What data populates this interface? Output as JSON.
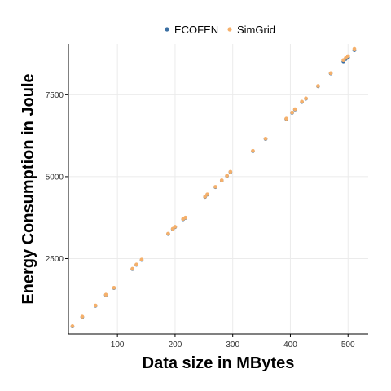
{
  "chart_data": {
    "type": "scatter",
    "xlabel": "Data size in MBytes",
    "ylabel": "Energy Consumption in Joule",
    "xlim": [
      15,
      535
    ],
    "ylim": [
      200,
      9050
    ],
    "xticks": [
      100,
      200,
      300,
      400,
      500
    ],
    "yticks": [
      2500,
      5000,
      7500
    ],
    "grid": true,
    "legend_position": "top",
    "series": [
      {
        "name": "ECOFEN",
        "color": "#3b6fa3",
        "points": [
          [
            22,
            430
          ],
          [
            39,
            720
          ],
          [
            62,
            1060
          ],
          [
            80,
            1390
          ],
          [
            94,
            1600
          ],
          [
            126,
            2180
          ],
          [
            133,
            2310
          ],
          [
            142,
            2460
          ],
          [
            188,
            3250
          ],
          [
            196,
            3400
          ],
          [
            200,
            3460
          ],
          [
            214,
            3700
          ],
          [
            218,
            3740
          ],
          [
            252,
            4380
          ],
          [
            256,
            4450
          ],
          [
            270,
            4680
          ],
          [
            281,
            4880
          ],
          [
            290,
            5020
          ],
          [
            296,
            5140
          ],
          [
            335,
            5780
          ],
          [
            357,
            6150
          ],
          [
            393,
            6760
          ],
          [
            403,
            6950
          ],
          [
            408,
            7050
          ],
          [
            420,
            7280
          ],
          [
            427,
            7380
          ],
          [
            448,
            7760
          ],
          [
            470,
            8150
          ],
          [
            492,
            8520
          ],
          [
            496,
            8590
          ],
          [
            500,
            8640
          ],
          [
            511,
            8860
          ]
        ]
      },
      {
        "name": "SimGrid",
        "color": "#f5b06b",
        "points": [
          [
            22,
            440
          ],
          [
            39,
            730
          ],
          [
            62,
            1070
          ],
          [
            80,
            1400
          ],
          [
            94,
            1610
          ],
          [
            126,
            2190
          ],
          [
            133,
            2320
          ],
          [
            142,
            2470
          ],
          [
            188,
            3260
          ],
          [
            196,
            3410
          ],
          [
            200,
            3470
          ],
          [
            214,
            3710
          ],
          [
            218,
            3750
          ],
          [
            252,
            4390
          ],
          [
            256,
            4460
          ],
          [
            270,
            4690
          ],
          [
            281,
            4890
          ],
          [
            290,
            5030
          ],
          [
            296,
            5150
          ],
          [
            335,
            5790
          ],
          [
            357,
            6160
          ],
          [
            393,
            6770
          ],
          [
            403,
            6960
          ],
          [
            408,
            7060
          ],
          [
            420,
            7290
          ],
          [
            427,
            7390
          ],
          [
            448,
            7770
          ],
          [
            470,
            8160
          ],
          [
            492,
            8560
          ],
          [
            496,
            8620
          ],
          [
            500,
            8680
          ],
          [
            511,
            8900
          ]
        ]
      }
    ]
  }
}
